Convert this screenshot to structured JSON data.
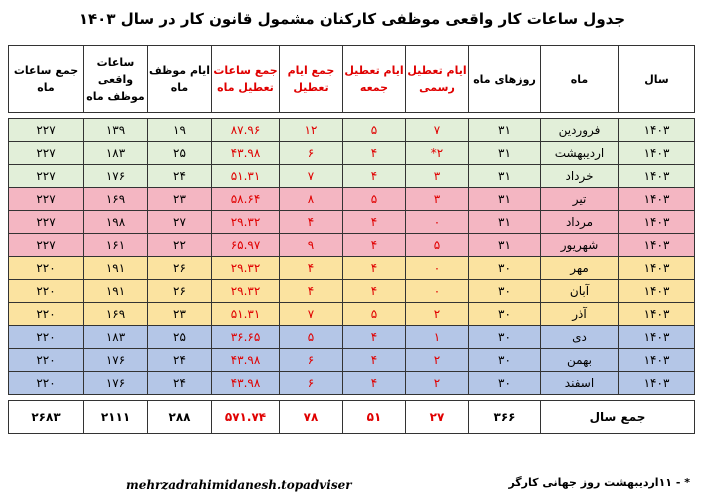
{
  "title": "جدول ساعات کار واقعی موظفی کارکنان مشمول قانون کار در سال ۱۴۰۳",
  "headers": {
    "year": "سال",
    "month": "ماه",
    "days": "روزهای ماه",
    "official": "ایام تعطیل رسمی",
    "friday": "ایام تعطیل جمعه",
    "total_off": "جمع ایام تعطیل",
    "off_hours": "جمع ساعات تعطیل ماه",
    "work_days": "ایام موظف ماه",
    "work_hours": "ساعات واقعی موظف ماه",
    "month_hours": "جمع ساعات ماه"
  },
  "rows": [
    {
      "year": "۱۴۰۳",
      "month": "فروردین",
      "days": "۳۱",
      "official": "۷",
      "friday": "۵",
      "total_off": "۱۲",
      "off_hours": "۸۷.۹۶",
      "work_days": "۱۹",
      "work_hours": "۱۳۹",
      "month_hours": "۲۲۷"
    },
    {
      "year": "۱۴۰۳",
      "month": "اردیبهشت",
      "days": "۳۱",
      "official": "۲*",
      "friday": "۴",
      "total_off": "۶",
      "off_hours": "۴۳.۹۸",
      "work_days": "۲۵",
      "work_hours": "۱۸۳",
      "month_hours": "۲۲۷"
    },
    {
      "year": "۱۴۰۳",
      "month": "خرداد",
      "days": "۳۱",
      "official": "۳",
      "friday": "۴",
      "total_off": "۷",
      "off_hours": "۵۱.۳۱",
      "work_days": "۲۴",
      "work_hours": "۱۷۶",
      "month_hours": "۲۲۷"
    },
    {
      "year": "۱۴۰۳",
      "month": "تیر",
      "days": "۳۱",
      "official": "۳",
      "friday": "۵",
      "total_off": "۸",
      "off_hours": "۵۸.۶۴",
      "work_days": "۲۳",
      "work_hours": "۱۶۹",
      "month_hours": "۲۲۷"
    },
    {
      "year": "۱۴۰۳",
      "month": "مرداد",
      "days": "۳۱",
      "official": "۰",
      "friday": "۴",
      "total_off": "۴",
      "off_hours": "۲۹.۳۲",
      "work_days": "۲۷",
      "work_hours": "۱۹۸",
      "month_hours": "۲۲۷"
    },
    {
      "year": "۱۴۰۳",
      "month": "شهریور",
      "days": "۳۱",
      "official": "۵",
      "friday": "۴",
      "total_off": "۹",
      "off_hours": "۶۵.۹۷",
      "work_days": "۲۲",
      "work_hours": "۱۶۱",
      "month_hours": "۲۲۷"
    },
    {
      "year": "۱۴۰۳",
      "month": "مهر",
      "days": "۳۰",
      "official": "۰",
      "friday": "۴",
      "total_off": "۴",
      "off_hours": "۲۹.۳۲",
      "work_days": "۲۶",
      "work_hours": "۱۹۱",
      "month_hours": "۲۲۰"
    },
    {
      "year": "۱۴۰۳",
      "month": "آبان",
      "days": "۳۰",
      "official": "۰",
      "friday": "۴",
      "total_off": "۴",
      "off_hours": "۲۹.۳۲",
      "work_days": "۲۶",
      "work_hours": "۱۹۱",
      "month_hours": "۲۲۰"
    },
    {
      "year": "۱۴۰۳",
      "month": "آذر",
      "days": "۳۰",
      "official": "۲",
      "friday": "۵",
      "total_off": "۷",
      "off_hours": "۵۱.۳۱",
      "work_days": "۲۳",
      "work_hours": "۱۶۹",
      "month_hours": "۲۲۰"
    },
    {
      "year": "۱۴۰۳",
      "month": "دی",
      "days": "۳۰",
      "official": "۱",
      "friday": "۴",
      "total_off": "۵",
      "off_hours": "۳۶.۶۵",
      "work_days": "۲۵",
      "work_hours": "۱۸۳",
      "month_hours": "۲۲۰"
    },
    {
      "year": "۱۴۰۳",
      "month": "بهمن",
      "days": "۳۰",
      "official": "۲",
      "friday": "۴",
      "total_off": "۶",
      "off_hours": "۴۳.۹۸",
      "work_days": "۲۴",
      "work_hours": "۱۷۶",
      "month_hours": "۲۲۰"
    },
    {
      "year": "۱۴۰۳",
      "month": "اسفند",
      "days": "۳۰",
      "official": "۲",
      "friday": "۴",
      "total_off": "۶",
      "off_hours": "۴۳.۹۸",
      "work_days": "۲۴",
      "work_hours": "۱۷۶",
      "month_hours": "۲۲۰"
    }
  ],
  "total": {
    "label": "جمع سال",
    "days": "۳۶۶",
    "official": "۲۷",
    "friday": "۵۱",
    "total_off": "۷۸",
    "off_hours": "۵۷۱.۷۴",
    "work_days": "۲۸۸",
    "work_hours": "۲۱۱۱",
    "month_hours": "۲۶۸۳"
  },
  "footer": {
    "website": "mehrzadrahimidanesh.topadviser",
    "note": "* - ۱۱اردیبهشت روز جهانی کارگر"
  },
  "colors": {
    "spring": "#e2efd9",
    "summer": "#f4b6c2",
    "autumn": "#fbe3a0",
    "winter": "#b4c6e7",
    "accent_red": "#e00000"
  }
}
